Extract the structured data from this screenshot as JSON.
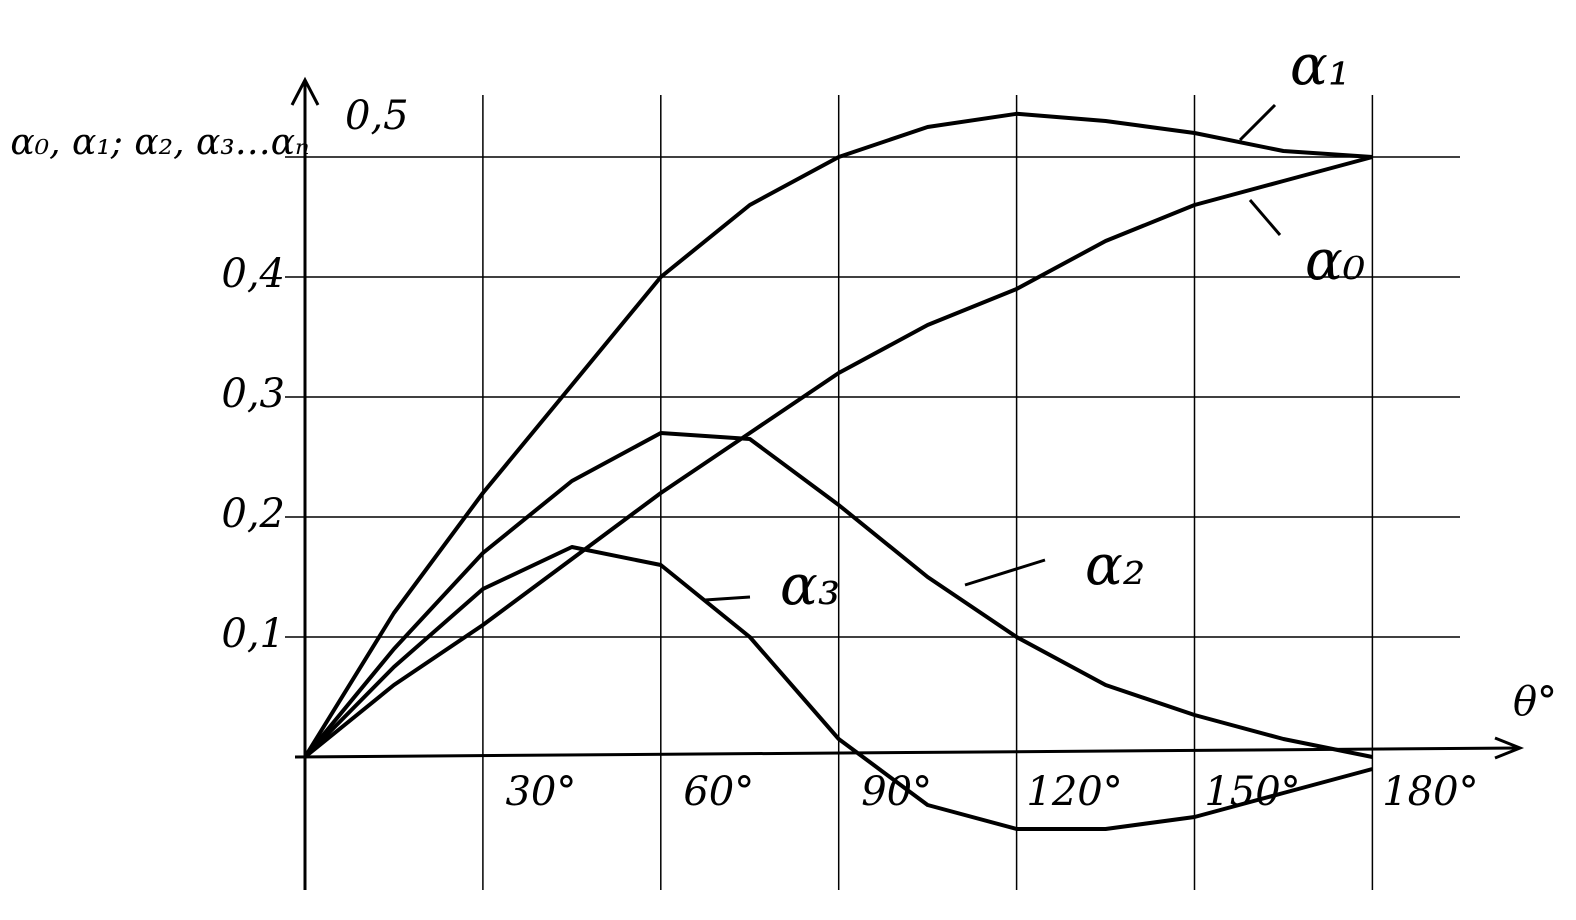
{
  "chart_data": {
    "type": "line",
    "x_label": "θ°",
    "y_label": "α₀, α₁; α₂, α₃…αₙ",
    "x": [
      0,
      15,
      30,
      45,
      60,
      75,
      90,
      105,
      120,
      135,
      150,
      165,
      180
    ],
    "series": [
      {
        "name": "α₁",
        "color": "#000000",
        "values": [
          0,
          0.12,
          0.22,
          0.31,
          0.4,
          0.46,
          0.5,
          0.525,
          0.536,
          0.53,
          0.52,
          0.505,
          0.5
        ]
      },
      {
        "name": "α₀",
        "color": "#000000",
        "values": [
          0,
          0.06,
          0.11,
          0.165,
          0.22,
          0.27,
          0.32,
          0.36,
          0.39,
          0.43,
          0.46,
          0.48,
          0.5
        ]
      },
      {
        "name": "α₂",
        "color": "#000000",
        "values": [
          0,
          0.09,
          0.17,
          0.23,
          0.27,
          0.265,
          0.21,
          0.15,
          0.1,
          0.06,
          0.035,
          0.015,
          0
        ]
      },
      {
        "name": "α₃",
        "color": "#000000",
        "values": [
          0,
          0.075,
          0.14,
          0.175,
          0.16,
          0.1,
          0.015,
          -0.04,
          -0.06,
          -0.06,
          -0.05,
          -0.03,
          -0.01
        ]
      }
    ],
    "xlim": [
      0,
      200
    ],
    "ylim": [
      -0.11,
      0.55
    ],
    "xticks": [
      {
        "value": 30,
        "label": "30°"
      },
      {
        "value": 60,
        "label": "60°"
      },
      {
        "value": 90,
        "label": "90°"
      },
      {
        "value": 120,
        "label": "120°"
      },
      {
        "value": 150,
        "label": "150°"
      },
      {
        "value": 180,
        "label": "180°"
      }
    ],
    "yticks": [
      {
        "value": 0.1,
        "label": "0,1"
      },
      {
        "value": 0.2,
        "label": "0,2"
      },
      {
        "value": 0.3,
        "label": "0,3"
      },
      {
        "value": 0.4,
        "label": "0,4"
      },
      {
        "value": 0.5,
        "label": "0,5"
      }
    ],
    "grid": true
  }
}
